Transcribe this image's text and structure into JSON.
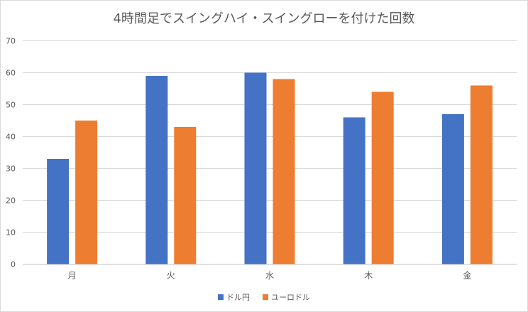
{
  "chart_data": {
    "type": "bar",
    "title": "4時間足でスイングハイ・スイングローを付けた回数",
    "categories": [
      "月",
      "火",
      "水",
      "木",
      "金"
    ],
    "series": [
      {
        "name": "ドル円",
        "values": [
          33,
          59,
          60,
          46,
          47
        ],
        "color": "#4472c4"
      },
      {
        "name": "ユーロドル",
        "values": [
          45,
          43,
          58,
          54,
          56
        ],
        "color": "#ed7d31"
      }
    ],
    "ylim": [
      0,
      70
    ],
    "yticks": [
      0,
      10,
      20,
      30,
      40,
      50,
      60,
      70
    ],
    "grid": true,
    "legend": "bottom"
  }
}
